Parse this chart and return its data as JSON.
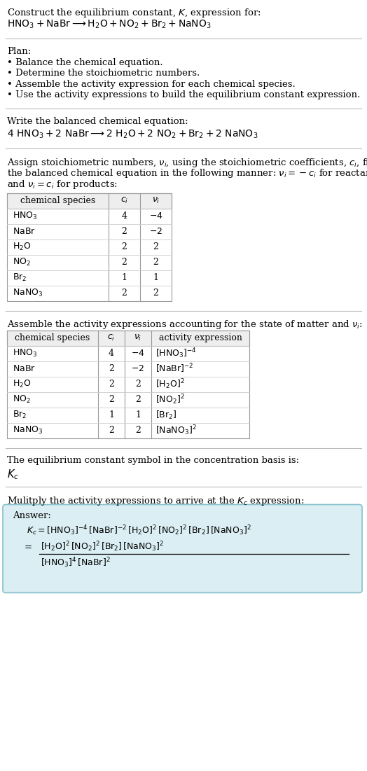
{
  "bg_color": "#ffffff",
  "text_color": "#000000",
  "title_line1": "Construct the equilibrium constant, $K$, expression for:",
  "title_line2": "$\\mathrm{HNO_3 + NaBr \\longrightarrow H_2O + NO_2 + Br_2 + NaNO_3}$",
  "plan_header": "Plan:",
  "plan_items": [
    "• Balance the chemical equation.",
    "• Determine the stoichiometric numbers.",
    "• Assemble the activity expression for each chemical species.",
    "• Use the activity expressions to build the equilibrium constant expression."
  ],
  "balanced_header": "Write the balanced chemical equation:",
  "balanced_eq": "$\\mathrm{4\\ HNO_3 + 2\\ NaBr \\longrightarrow 2\\ H_2O + 2\\ NO_2 + Br_2 + 2\\ NaNO_3}$",
  "stoich_lines": [
    "Assign stoichiometric numbers, $\\nu_i$, using the stoichiometric coefficients, $c_i$, from",
    "the balanced chemical equation in the following manner: $\\nu_i = -c_i$ for reactants",
    "and $\\nu_i = c_i$ for products:"
  ],
  "table1_headers": [
    "chemical species",
    "$c_i$",
    "$\\nu_i$"
  ],
  "table1_rows": [
    [
      "$\\mathrm{HNO_3}$",
      "4",
      "$-4$"
    ],
    [
      "$\\mathrm{NaBr}$",
      "2",
      "$-2$"
    ],
    [
      "$\\mathrm{H_2O}$",
      "2",
      "2"
    ],
    [
      "$\\mathrm{NO_2}$",
      "2",
      "2"
    ],
    [
      "$\\mathrm{Br_2}$",
      "1",
      "1"
    ],
    [
      "$\\mathrm{NaNO_3}$",
      "2",
      "2"
    ]
  ],
  "activity_header": "Assemble the activity expressions accounting for the state of matter and $\\nu_i$:",
  "table2_headers": [
    "chemical species",
    "$c_i$",
    "$\\nu_i$",
    "activity expression"
  ],
  "table2_rows": [
    [
      "$\\mathrm{HNO_3}$",
      "4",
      "$-4$",
      "$[\\mathrm{HNO_3}]^{-4}$"
    ],
    [
      "$\\mathrm{NaBr}$",
      "2",
      "$-2$",
      "$[\\mathrm{NaBr}]^{-2}$"
    ],
    [
      "$\\mathrm{H_2O}$",
      "2",
      "2",
      "$[\\mathrm{H_2O}]^{2}$"
    ],
    [
      "$\\mathrm{NO_2}$",
      "2",
      "2",
      "$[\\mathrm{NO_2}]^{2}$"
    ],
    [
      "$\\mathrm{Br_2}$",
      "1",
      "1",
      "$[\\mathrm{Br_2}]$"
    ],
    [
      "$\\mathrm{NaNO_3}$",
      "2",
      "2",
      "$[\\mathrm{NaNO_3}]^{2}$"
    ]
  ],
  "kc_header": "The equilibrium constant symbol in the concentration basis is:",
  "kc_symbol": "$K_c$",
  "multiply_header": "Mulitply the activity expressions to arrive at the $K_c$ expression:",
  "answer_label": "Answer:",
  "answer_line1": "$K_c = [\\mathrm{HNO_3}]^{-4}\\,[\\mathrm{NaBr}]^{-2}\\,[\\mathrm{H_2O}]^{2}\\,[\\mathrm{NO_2}]^{2}\\,[\\mathrm{Br_2}]\\,[\\mathrm{NaNO_3}]^{2}$",
  "answer_line2_num": "$[\\mathrm{H_2O}]^{2}\\,[\\mathrm{NO_2}]^{2}\\,[\\mathrm{Br_2}]\\,[\\mathrm{NaNO_3}]^{2}$",
  "answer_line2_den": "$[\\mathrm{HNO_3}]^{4}\\,[\\mathrm{NaBr}]^{2}$",
  "answer_box_color": "#daeef3",
  "answer_box_edge": "#88c0cc"
}
